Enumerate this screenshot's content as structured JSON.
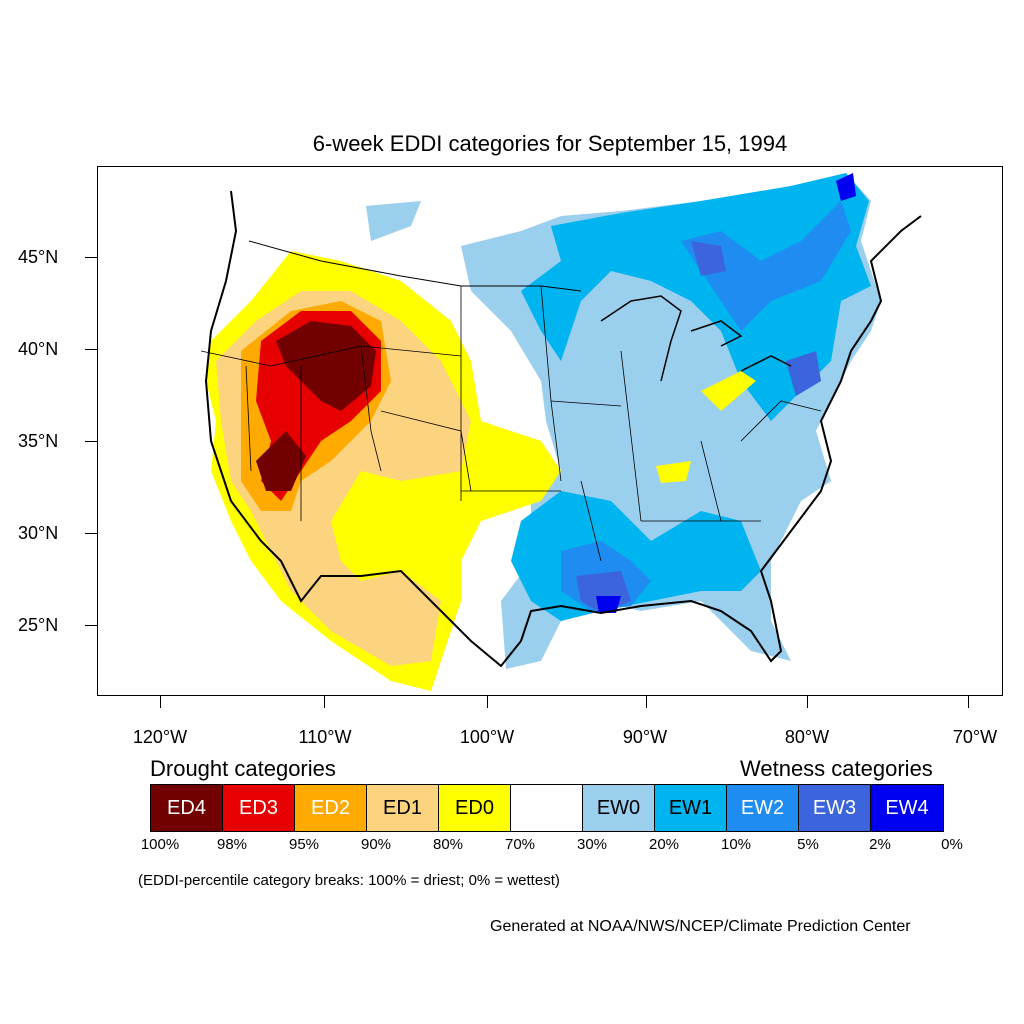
{
  "title": "6-week EDDI categories for September 15, 1994",
  "latitude_labels": [
    "45°N",
    "40°N",
    "35°N",
    "30°N",
    "25°N"
  ],
  "longitude_labels": [
    "120°W",
    "110°W",
    "100°W",
    "90°W",
    "80°W",
    "70°W"
  ],
  "legend": {
    "drought_heading": "Drought categories",
    "wetness_heading": "Wetness categories",
    "categories": [
      {
        "label": "ED4",
        "color": "#730000",
        "text_color": "#ffffff"
      },
      {
        "label": "ED3",
        "color": "#e60000",
        "text_color": "#ffffff"
      },
      {
        "label": "ED2",
        "color": "#ffaa00",
        "text_color": "#ffffff"
      },
      {
        "label": "ED1",
        "color": "#fcd37f",
        "text_color": "#000000"
      },
      {
        "label": "ED0",
        "color": "#ffff00",
        "text_color": "#000000"
      },
      {
        "label": "",
        "color": "#ffffff",
        "text_color": "#000000"
      },
      {
        "label": "EW0",
        "color": "#9bcfee",
        "text_color": "#000000"
      },
      {
        "label": "EW1",
        "color": "#00b4f0",
        "text_color": "#000000"
      },
      {
        "label": "EW2",
        "color": "#1e8cf0",
        "text_color": "#ffffff"
      },
      {
        "label": "EW3",
        "color": "#3c64dc",
        "text_color": "#ffffff"
      },
      {
        "label": "EW4",
        "color": "#0000f0",
        "text_color": "#ffffff"
      }
    ],
    "percent_breaks": [
      "100%",
      "98%",
      "95%",
      "90%",
      "80%",
      "70%",
      "30%",
      "20%",
      "10%",
      "5%",
      "2%",
      "0%"
    ]
  },
  "note": "(EDDI-percentile category breaks: 100% = driest; 0% = wettest)",
  "credit": "Generated at NOAA/NWS/NCEP/Climate Prediction Center"
}
